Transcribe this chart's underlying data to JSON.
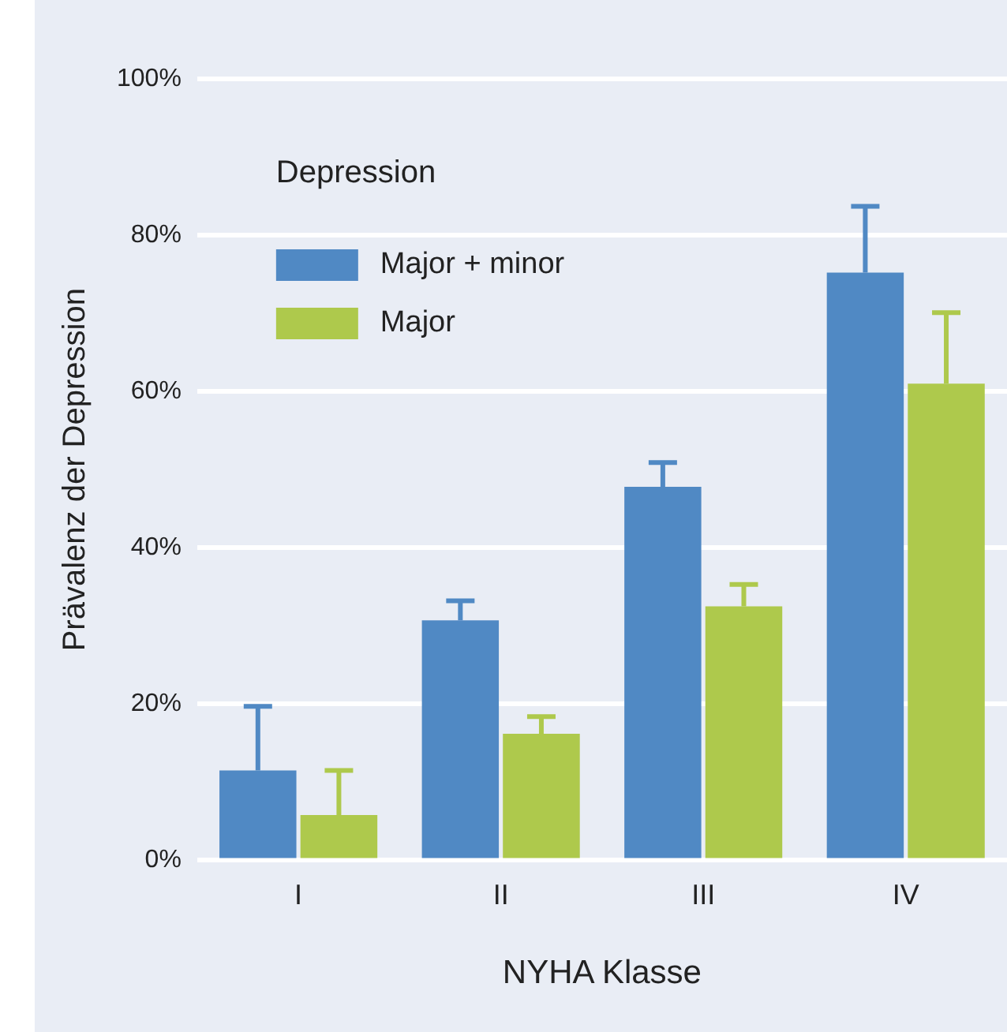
{
  "chart_data": {
    "type": "bar",
    "xlabel": "NYHA Klasse",
    "ylabel": "Prävalenz der Depression",
    "legend_title": "Depression",
    "categories": [
      "I",
      "II",
      "III",
      "IV"
    ],
    "series": [
      {
        "name": "Major + minor",
        "color": "#5089c4",
        "values": [
          11.5,
          30.7,
          47.8,
          75.2
        ],
        "errors": [
          [
            11.5,
            19.7
          ],
          [
            30.7,
            33.2
          ],
          [
            47.8,
            50.9
          ],
          [
            75.2,
            83.7
          ]
        ]
      },
      {
        "name": "Major",
        "color": "#aec94c",
        "values": [
          5.8,
          16.2,
          32.5,
          61.0
        ],
        "errors": [
          [
            5.8,
            11.5
          ],
          [
            16.2,
            18.4
          ],
          [
            32.5,
            35.3
          ],
          [
            61.0,
            70.1
          ]
        ]
      }
    ],
    "ylim": [
      0,
      100
    ],
    "yticks": [
      {
        "value": 0,
        "label": "0%"
      },
      {
        "value": 20,
        "label": "20%"
      },
      {
        "value": 40,
        "label": "40%"
      },
      {
        "value": 60,
        "label": "60%"
      },
      {
        "value": 80,
        "label": "80%"
      },
      {
        "value": 100,
        "label": "100%"
      }
    ],
    "grid": "y",
    "legend": "top left"
  }
}
